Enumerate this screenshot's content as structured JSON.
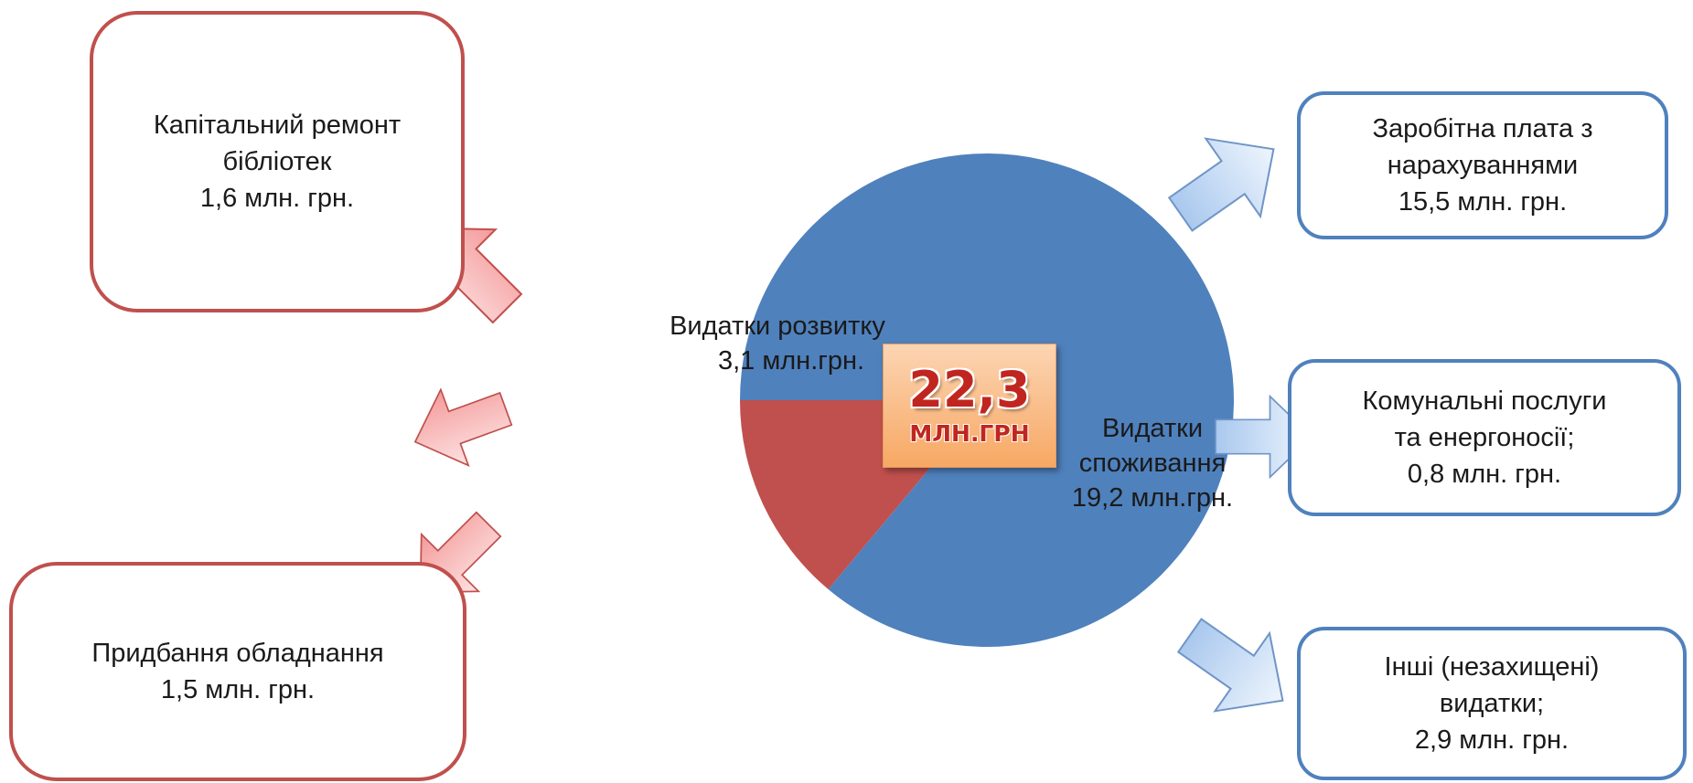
{
  "chart_data": {
    "type": "pie",
    "categories": [
      "Видатки розвитку",
      "Видатки споживання"
    ],
    "values": [
      3.1,
      19.2
    ],
    "colors": [
      "#c0504d",
      "#4f81bd"
    ]
  },
  "pie_labels": {
    "development": {
      "line1": "Видатки розвитку",
      "line2": "3,1 млн.грн."
    },
    "consumption": {
      "line1": "Видатки",
      "line2": "споживання",
      "line3": "19,2 млн.грн."
    }
  },
  "total": {
    "value": "22,3",
    "unit": "МЛН.ГРН"
  },
  "development_items": [
    {
      "line1": "Капітальний ремонт",
      "line2": "бібліотек",
      "line3": "1,6 млн. грн."
    },
    {
      "line1": "Придбання обладнання",
      "line2": "1,5 млн. грн."
    }
  ],
  "consumption_items": [
    {
      "line1": "Заробітна плата з",
      "line2": "нарахуваннями",
      "line3": "15,5 млн. грн."
    },
    {
      "line1": "Комунальні послуги",
      "line2": "та енергоносії;",
      "line3": "0,8 млн. грн."
    },
    {
      "line1": "Інші (незахищені)",
      "line2": "видатки;",
      "line3": "2,9 млн. грн."
    }
  ],
  "colors": {
    "development": "#c0504d",
    "consumption": "#4f81bd",
    "arrow_red_fill": "#f8b4b4",
    "arrow_blue_fill": "#c6dcf5"
  }
}
